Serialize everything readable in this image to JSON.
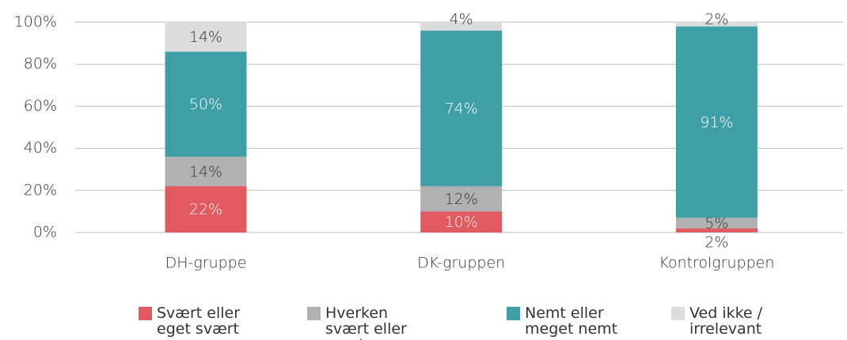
{
  "chart_data": {
    "type": "stacked_bar",
    "categories": [
      "DH-gruppe",
      "DK-gruppen",
      "Kontrolgruppen"
    ],
    "series": [
      {
        "name": "Svært eller eget svært",
        "color": "#e05a5f",
        "label_color": "#ffffff",
        "values": [
          22,
          10,
          2
        ],
        "value_labels": [
          "22%",
          "10%",
          "2%"
        ]
      },
      {
        "name": "Hverken svært eller nemt",
        "color": "#b1b1b3",
        "label_color": "#333333",
        "values": [
          14,
          12,
          5
        ],
        "value_labels": [
          "14%",
          "12%",
          "5%"
        ]
      },
      {
        "name": "Nemt eller meget nemt",
        "color": "#3f9fa6",
        "label_color": "#ffffff",
        "values": [
          50,
          74,
          91
        ],
        "value_labels": [
          "50%",
          "74%",
          "91%"
        ]
      },
      {
        "name": "Ved ikke / irrelevant",
        "color": "#dcdcdd",
        "label_color": "#333333",
        "values": [
          14,
          4,
          2
        ],
        "value_labels": [
          "14%",
          "4%",
          "2%"
        ]
      }
    ],
    "ylim": [
      0,
      100
    ],
    "yticks": [
      {
        "value": 0,
        "label": "0%"
      },
      {
        "value": 20,
        "label": "20%"
      },
      {
        "value": 40,
        "label": "40%"
      },
      {
        "value": 60,
        "label": "60%"
      },
      {
        "value": 80,
        "label": "80%"
      },
      {
        "value": 100,
        "label": "100%"
      }
    ],
    "grid": true
  }
}
